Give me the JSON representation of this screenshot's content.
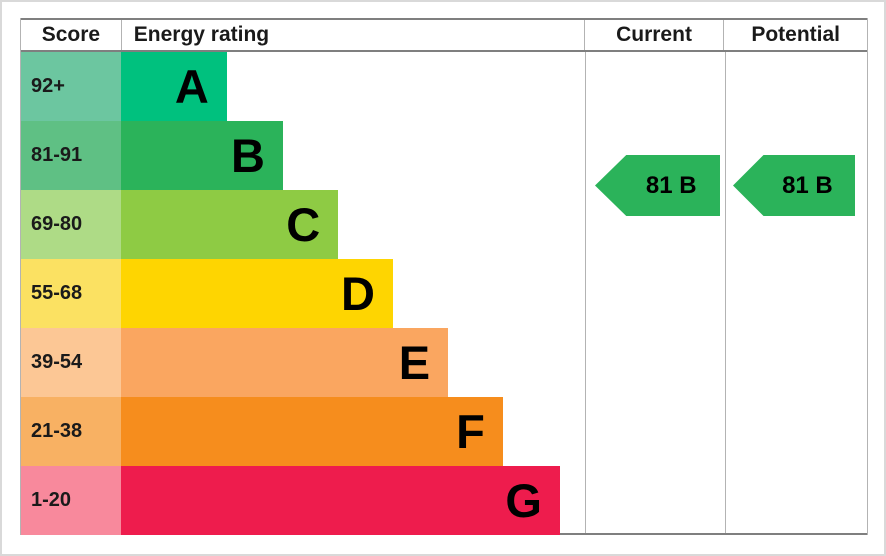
{
  "table": {
    "headers": {
      "score": "Score",
      "rating": "Energy rating",
      "current": "Current",
      "potential": "Potential"
    },
    "bands": [
      {
        "score": "92+",
        "letter": "A",
        "color": "#00c17e",
        "tint": "#6cc6a0",
        "width": "22.8%"
      },
      {
        "score": "81-91",
        "letter": "B",
        "color": "#2bb35a",
        "tint": "#5fc084",
        "width": "34.9%"
      },
      {
        "score": "69-80",
        "letter": "C",
        "color": "#8ecb44",
        "tint": "#aedb86",
        "width": "46.8%"
      },
      {
        "score": "55-68",
        "letter": "D",
        "color": "#fed501",
        "tint": "#fbe162",
        "width": "58.6%"
      },
      {
        "score": "39-54",
        "letter": "E",
        "color": "#faa660",
        "tint": "#fcc795",
        "width": "70.5%"
      },
      {
        "score": "21-38",
        "letter": "F",
        "color": "#f68d1d",
        "tint": "#f8b163",
        "width": "82.3%"
      },
      {
        "score": "1-20",
        "letter": "G",
        "color": "#ee1c4d",
        "tint": "#f8899c",
        "width": "94.6%"
      }
    ],
    "current": {
      "label": "81 B",
      "color": "#2bb35a"
    },
    "potential": {
      "label": "81 B",
      "color": "#2bb35a"
    }
  },
  "chart_data": {
    "type": "bar",
    "title": "EPC Energy rating chart",
    "columns": [
      "Score",
      "Energy rating",
      "Current",
      "Potential"
    ],
    "categories": [
      "A",
      "B",
      "C",
      "D",
      "E",
      "F",
      "G"
    ],
    "score_ranges": [
      "92+",
      "81-91",
      "69-80",
      "55-68",
      "39-54",
      "21-38",
      "1-20"
    ],
    "bar_lengths_pct_of_column": [
      22.8,
      34.9,
      46.8,
      58.6,
      70.5,
      82.3,
      94.6
    ],
    "band_colors": [
      "#00c17e",
      "#2bb35a",
      "#8ecb44",
      "#fed501",
      "#faa660",
      "#f68d1d",
      "#ee1c4d"
    ],
    "band_tint_colors": [
      "#6cc6a0",
      "#5fc084",
      "#aedb86",
      "#fbe162",
      "#fcc795",
      "#f8b163",
      "#f8899c"
    ],
    "current": {
      "score": 81,
      "rating": "B"
    },
    "potential": {
      "score": 81,
      "rating": "B"
    },
    "orientation": "horizontal",
    "grid": false,
    "legend_position": "none"
  }
}
